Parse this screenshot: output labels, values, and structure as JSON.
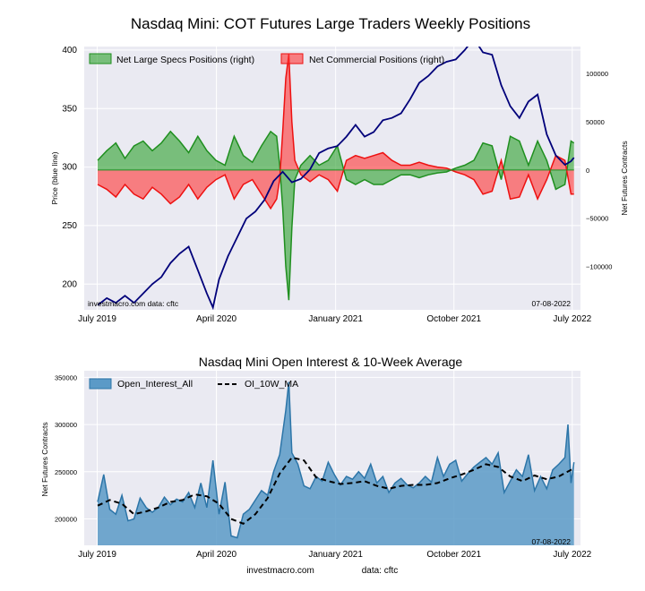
{
  "title": "Nasdaq Mini: COT Futures Large Traders Weekly Positions",
  "subtitle": "Nasdaq Mini Open Interest & 10-Week Average",
  "footer": {
    "source_site": "investmacro.com",
    "source_data": "data: cftc"
  },
  "colors": {
    "price": "#00007a",
    "specs_fill": "#2ca02c",
    "specs_line": "#1f8f1f",
    "comm_fill": "#ff3333",
    "comm_line": "#ee1111",
    "oi_fill": "#5b9ac7",
    "oi_line": "#2c75a8",
    "oi_avg": "#000000",
    "plot_bg": "#eaeaf2",
    "grid": "#ffffff"
  },
  "chart_data": [
    {
      "type": "area",
      "title": "Nasdaq Mini: COT Futures Large Traders Weekly Positions",
      "ylabel": "Price (blue line)",
      "y2label": "Net Futures Contracts",
      "x_tick_labels": [
        "July 2019",
        "April 2020",
        "January 2021",
        "October 2021",
        "July 2022"
      ],
      "x_tick_dates": [
        "2019-07-01",
        "2020-04-01",
        "2021-01-01",
        "2021-10-01",
        "2022-07-01"
      ],
      "x_range": [
        "2019-06-01",
        "2022-07-20"
      ],
      "y_ticks": [
        200,
        250,
        300,
        350,
        400
      ],
      "ylim": [
        178,
        403
      ],
      "y2_ticks": [
        -100000,
        -50000,
        0,
        50000,
        100000
      ],
      "y2_tick_labels": [
        "−100000",
        "−50000",
        "0",
        "50000",
        "100000"
      ],
      "y2lim": [
        -145000,
        128000
      ],
      "legend": [
        "Net Large Specs Positions (right)",
        "Net Commercial Positions (right)"
      ],
      "legend_position": "top",
      "corner_left": "investmacro.com   data: cftc",
      "corner_right": "07-08-2022",
      "grid": true,
      "series": [
        {
          "name": "Net Large Specs Positions (right)",
          "axis": "right",
          "kind": "area",
          "x": [
            "2019-07-02",
            "2019-07-23",
            "2019-08-13",
            "2019-09-03",
            "2019-09-24",
            "2019-10-15",
            "2019-11-05",
            "2019-11-26",
            "2019-12-17",
            "2020-01-07",
            "2020-01-28",
            "2020-02-18",
            "2020-03-10",
            "2020-03-31",
            "2020-04-21",
            "2020-05-12",
            "2020-06-02",
            "2020-06-23",
            "2020-07-14",
            "2020-08-04",
            "2020-08-18",
            "2020-08-25",
            "2020-09-01",
            "2020-09-08",
            "2020-09-15",
            "2020-09-22",
            "2020-09-29",
            "2020-10-13",
            "2020-11-03",
            "2020-11-24",
            "2020-12-15",
            "2021-01-05",
            "2021-01-26",
            "2021-02-16",
            "2021-03-09",
            "2021-03-30",
            "2021-04-20",
            "2021-05-11",
            "2021-06-01",
            "2021-06-22",
            "2021-07-13",
            "2021-08-03",
            "2021-08-24",
            "2021-09-14",
            "2021-10-05",
            "2021-10-26",
            "2021-11-16",
            "2021-12-07",
            "2021-12-28",
            "2022-01-18",
            "2022-02-08",
            "2022-03-01",
            "2022-03-22",
            "2022-04-12",
            "2022-05-03",
            "2022-05-24",
            "2022-06-14",
            "2022-06-28",
            "2022-07-05"
          ],
          "values": [
            10000,
            20000,
            28000,
            12000,
            25000,
            30000,
            20000,
            28000,
            40000,
            30000,
            18000,
            35000,
            20000,
            10000,
            5000,
            35000,
            15000,
            8000,
            25000,
            40000,
            35000,
            5000,
            -40000,
            -100000,
            -135000,
            -60000,
            -10000,
            5000,
            15000,
            5000,
            10000,
            25000,
            -10000,
            -15000,
            -10000,
            -15000,
            -15000,
            -10000,
            -5000,
            -5000,
            -8000,
            -5000,
            -3000,
            -2000,
            2000,
            5000,
            10000,
            28000,
            25000,
            -10000,
            35000,
            30000,
            5000,
            30000,
            10000,
            -20000,
            -15000,
            30000,
            28000
          ]
        },
        {
          "name": "Net Commercial Positions (right)",
          "axis": "right",
          "kind": "area",
          "x": [
            "2019-07-02",
            "2019-07-23",
            "2019-08-13",
            "2019-09-03",
            "2019-09-24",
            "2019-10-15",
            "2019-11-05",
            "2019-11-26",
            "2019-12-17",
            "2020-01-07",
            "2020-01-28",
            "2020-02-18",
            "2020-03-10",
            "2020-03-31",
            "2020-04-21",
            "2020-05-12",
            "2020-06-02",
            "2020-06-23",
            "2020-07-14",
            "2020-08-04",
            "2020-08-18",
            "2020-08-25",
            "2020-09-01",
            "2020-09-08",
            "2020-09-15",
            "2020-09-22",
            "2020-09-29",
            "2020-10-13",
            "2020-11-03",
            "2020-11-24",
            "2020-12-15",
            "2021-01-05",
            "2021-01-26",
            "2021-02-16",
            "2021-03-09",
            "2021-03-30",
            "2021-04-20",
            "2021-05-11",
            "2021-06-01",
            "2021-06-22",
            "2021-07-13",
            "2021-08-03",
            "2021-08-24",
            "2021-09-14",
            "2021-10-05",
            "2021-10-26",
            "2021-11-16",
            "2021-12-07",
            "2021-12-28",
            "2022-01-18",
            "2022-02-08",
            "2022-03-01",
            "2022-03-22",
            "2022-04-12",
            "2022-05-03",
            "2022-05-24",
            "2022-06-14",
            "2022-06-28",
            "2022-07-05"
          ],
          "values": [
            -15000,
            -20000,
            -28000,
            -15000,
            -25000,
            -30000,
            -18000,
            -25000,
            -35000,
            -28000,
            -15000,
            -30000,
            -18000,
            -10000,
            -5000,
            -30000,
            -15000,
            -10000,
            -25000,
            -40000,
            -30000,
            -10000,
            40000,
            95000,
            120000,
            50000,
            10000,
            -5000,
            -12000,
            -5000,
            -10000,
            -22000,
            10000,
            15000,
            12000,
            15000,
            18000,
            10000,
            5000,
            5000,
            8000,
            5000,
            3000,
            2000,
            -2000,
            -5000,
            -10000,
            -25000,
            -22000,
            10000,
            -30000,
            -28000,
            -5000,
            -30000,
            -10000,
            15000,
            10000,
            -25000,
            -25000
          ]
        },
        {
          "name": "Price",
          "axis": "left",
          "kind": "line",
          "x": [
            "2019-07-02",
            "2019-07-23",
            "2019-08-13",
            "2019-09-03",
            "2019-09-24",
            "2019-10-15",
            "2019-11-05",
            "2019-11-26",
            "2019-12-17",
            "2020-01-07",
            "2020-01-28",
            "2020-02-18",
            "2020-03-10",
            "2020-03-24",
            "2020-04-07",
            "2020-04-28",
            "2020-05-19",
            "2020-06-09",
            "2020-06-30",
            "2020-07-21",
            "2020-08-11",
            "2020-09-01",
            "2020-09-22",
            "2020-10-13",
            "2020-11-03",
            "2020-11-24",
            "2020-12-15",
            "2021-01-05",
            "2021-01-26",
            "2021-02-16",
            "2021-03-09",
            "2021-03-30",
            "2021-04-20",
            "2021-05-11",
            "2021-06-01",
            "2021-06-22",
            "2021-07-13",
            "2021-08-03",
            "2021-08-24",
            "2021-09-14",
            "2021-10-05",
            "2021-10-26",
            "2021-11-16",
            "2021-12-07",
            "2021-12-28",
            "2022-01-18",
            "2022-02-08",
            "2022-03-01",
            "2022-03-22",
            "2022-04-12",
            "2022-05-03",
            "2022-05-24",
            "2022-06-14",
            "2022-06-28",
            "2022-07-05"
          ],
          "values": [
            182,
            188,
            184,
            190,
            184,
            192,
            200,
            206,
            218,
            226,
            232,
            212,
            192,
            180,
            204,
            224,
            240,
            256,
            262,
            272,
            288,
            296,
            287,
            290,
            298,
            312,
            316,
            318,
            326,
            336,
            326,
            330,
            340,
            342,
            346,
            358,
            372,
            378,
            386,
            390,
            392,
            400,
            410,
            398,
            396,
            370,
            352,
            342,
            356,
            362,
            328,
            310,
            302,
            305,
            308
          ]
        }
      ]
    },
    {
      "type": "area",
      "title": "Nasdaq Mini Open Interest & 10-Week Average",
      "ylabel": "Net Futures Contracts",
      "x_tick_labels": [
        "July 2019",
        "April 2020",
        "January 2021",
        "October 2021",
        "July 2022"
      ],
      "x_tick_dates": [
        "2019-07-01",
        "2020-04-01",
        "2021-01-01",
        "2021-10-01",
        "2022-07-01"
      ],
      "x_range": [
        "2019-06-01",
        "2022-07-20"
      ],
      "y_ticks": [
        200000,
        250000,
        300000,
        350000
      ],
      "ylim": [
        172000,
        357000
      ],
      "legend": [
        "Open_Interest_All",
        "OI_10W_MA"
      ],
      "legend_position": "top-left",
      "corner_right": "07-08-2022",
      "grid": true,
      "series": [
        {
          "name": "Open_Interest_All",
          "kind": "area",
          "x": [
            "2019-07-02",
            "2019-07-16",
            "2019-07-30",
            "2019-08-13",
            "2019-08-27",
            "2019-09-10",
            "2019-09-24",
            "2019-10-08",
            "2019-10-22",
            "2019-11-05",
            "2019-11-19",
            "2019-12-03",
            "2019-12-17",
            "2019-12-31",
            "2020-01-14",
            "2020-01-28",
            "2020-02-11",
            "2020-02-25",
            "2020-03-10",
            "2020-03-24",
            "2020-04-07",
            "2020-04-21",
            "2020-05-05",
            "2020-05-19",
            "2020-06-02",
            "2020-06-16",
            "2020-06-30",
            "2020-07-14",
            "2020-07-28",
            "2020-08-11",
            "2020-08-25",
            "2020-09-08",
            "2020-09-15",
            "2020-09-22",
            "2020-10-06",
            "2020-10-20",
            "2020-11-03",
            "2020-11-17",
            "2020-12-01",
            "2020-12-15",
            "2020-12-29",
            "2021-01-12",
            "2021-01-26",
            "2021-02-09",
            "2021-02-23",
            "2021-03-09",
            "2021-03-23",
            "2021-04-06",
            "2021-04-20",
            "2021-05-04",
            "2021-05-18",
            "2021-06-01",
            "2021-06-15",
            "2021-06-29",
            "2021-07-13",
            "2021-07-27",
            "2021-08-10",
            "2021-08-24",
            "2021-09-07",
            "2021-09-21",
            "2021-10-05",
            "2021-10-19",
            "2021-11-02",
            "2021-11-16",
            "2021-11-30",
            "2021-12-14",
            "2021-12-28",
            "2022-01-11",
            "2022-01-25",
            "2022-02-08",
            "2022-02-22",
            "2022-03-08",
            "2022-03-22",
            "2022-04-05",
            "2022-04-19",
            "2022-05-03",
            "2022-05-17",
            "2022-05-31",
            "2022-06-14",
            "2022-06-21",
            "2022-06-28",
            "2022-07-05"
          ],
          "values": [
            218000,
            247000,
            210000,
            205000,
            225000,
            198000,
            200000,
            222000,
            212000,
            207000,
            212000,
            223000,
            215000,
            221000,
            218000,
            228000,
            212000,
            238000,
            212000,
            262000,
            205000,
            239000,
            182000,
            180000,
            205000,
            210000,
            220000,
            230000,
            225000,
            250000,
            268000,
            315000,
            345000,
            270000,
            258000,
            235000,
            232000,
            245000,
            240000,
            260000,
            247000,
            236000,
            245000,
            242000,
            250000,
            243000,
            258000,
            238000,
            245000,
            228000,
            238000,
            243000,
            236000,
            233000,
            238000,
            245000,
            239000,
            265000,
            245000,
            258000,
            262000,
            240000,
            248000,
            255000,
            260000,
            265000,
            258000,
            270000,
            228000,
            240000,
            252000,
            245000,
            268000,
            230000,
            245000,
            232000,
            252000,
            258000,
            265000,
            300000,
            238000,
            260000
          ]
        },
        {
          "name": "OI_10W_MA",
          "kind": "line",
          "style": "dashed",
          "x": [
            "2019-07-02",
            "2019-07-30",
            "2019-08-27",
            "2019-09-24",
            "2019-10-22",
            "2019-11-19",
            "2019-12-17",
            "2020-01-14",
            "2020-02-11",
            "2020-03-10",
            "2020-04-07",
            "2020-05-05",
            "2020-06-02",
            "2020-06-30",
            "2020-07-28",
            "2020-08-25",
            "2020-09-22",
            "2020-10-20",
            "2020-11-17",
            "2020-12-15",
            "2021-01-12",
            "2021-02-09",
            "2021-03-09",
            "2021-04-06",
            "2021-05-04",
            "2021-06-01",
            "2021-06-29",
            "2021-07-27",
            "2021-08-24",
            "2021-09-21",
            "2021-10-19",
            "2021-11-16",
            "2021-12-14",
            "2022-01-11",
            "2022-02-08",
            "2022-03-08",
            "2022-04-05",
            "2022-05-03",
            "2022-05-31",
            "2022-06-28",
            "2022-07-05"
          ],
          "values": [
            214000,
            220000,
            216000,
            205000,
            208000,
            212000,
            218000,
            220000,
            226000,
            224000,
            216000,
            200000,
            195000,
            205000,
            222000,
            248000,
            265000,
            262000,
            244000,
            240000,
            237000,
            238000,
            240000,
            235000,
            232000,
            235000,
            236000,
            236000,
            238000,
            243000,
            247000,
            252000,
            258000,
            255000,
            245000,
            240000,
            246000,
            242000,
            245000,
            252000,
            254000
          ]
        }
      ]
    }
  ]
}
